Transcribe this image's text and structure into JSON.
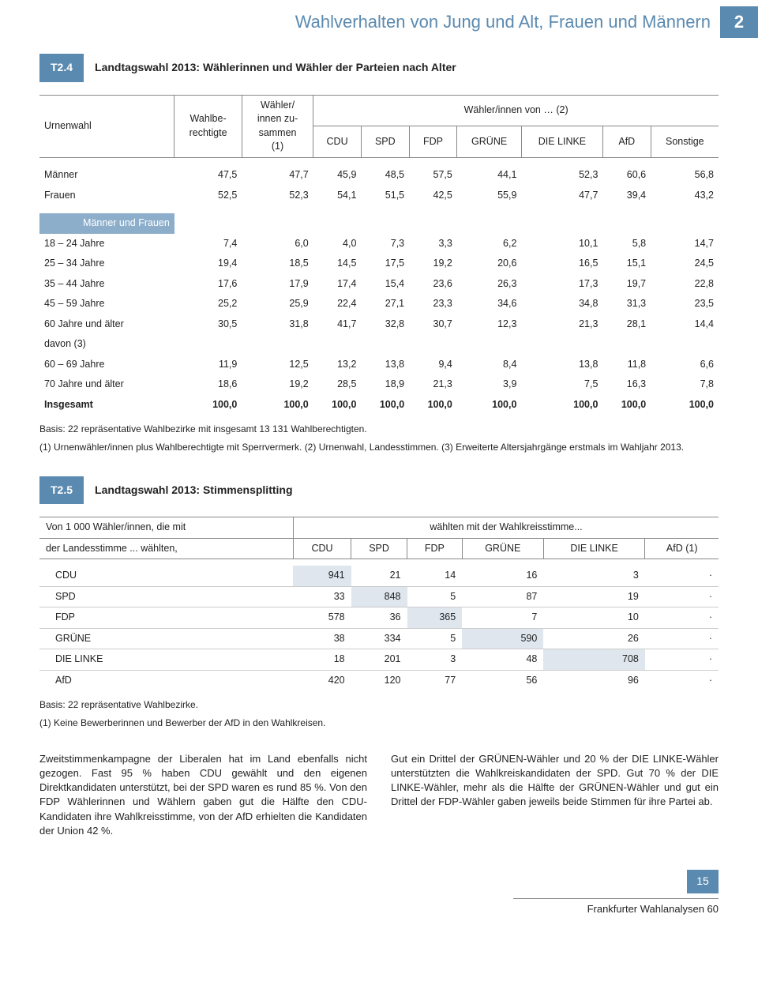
{
  "header": {
    "title": "Wahlverhalten von Jung und Alt, Frauen und Männern",
    "chapter": "2"
  },
  "t24": {
    "tag": "T2.4",
    "title": "Landtagswahl 2013: Wählerinnen und Wähler der Parteien nach Alter",
    "col_rowhead": "Urnenwahl",
    "col_wahlbe": "Wahlbe-\nrechtigte",
    "col_wiz": "Wähler/\ninnen zu-\nsammen\n(1)",
    "col_spanhead": "Wähler/innen von … (2)",
    "parties": [
      "CDU",
      "SPD",
      "FDP",
      "GRÜNE",
      "DIE LINKE",
      "AfD",
      "Sonstige"
    ],
    "rows_gender": [
      {
        "label": "Männer",
        "vals": [
          "47,5",
          "47,7",
          "45,9",
          "48,5",
          "57,5",
          "44,1",
          "52,3",
          "60,6",
          "56,8"
        ]
      },
      {
        "label": "Frauen",
        "vals": [
          "52,5",
          "52,3",
          "54,1",
          "51,5",
          "42,5",
          "55,9",
          "47,7",
          "39,4",
          "43,2"
        ]
      }
    ],
    "section_label": "Männer und Frauen",
    "rows_age": [
      {
        "label": "18 – 24 Jahre",
        "vals": [
          "7,4",
          "6,0",
          "4,0",
          "7,3",
          "3,3",
          "6,2",
          "10,1",
          "5,8",
          "14,7"
        ]
      },
      {
        "label": "25 – 34 Jahre",
        "vals": [
          "19,4",
          "18,5",
          "14,5",
          "17,5",
          "19,2",
          "20,6",
          "16,5",
          "15,1",
          "24,5"
        ]
      },
      {
        "label": "35 – 44 Jahre",
        "vals": [
          "17,6",
          "17,9",
          "17,4",
          "15,4",
          "23,6",
          "26,3",
          "17,3",
          "19,7",
          "22,8"
        ]
      },
      {
        "label": "45 – 59 Jahre",
        "vals": [
          "25,2",
          "25,9",
          "22,4",
          "27,1",
          "23,3",
          "34,6",
          "34,8",
          "31,3",
          "23,5"
        ]
      },
      {
        "label": "60 Jahre und älter",
        "vals": [
          "30,5",
          "31,8",
          "41,7",
          "32,8",
          "30,7",
          "12,3",
          "21,3",
          "28,1",
          "14,4"
        ]
      },
      {
        "label": "davon (3)",
        "vals": [
          "",
          "",
          "",
          "",
          "",
          "",
          "",
          "",
          ""
        ]
      },
      {
        "label": "60 – 69 Jahre",
        "vals": [
          "11,9",
          "12,5",
          "13,2",
          "13,8",
          "9,4",
          "8,4",
          "13,8",
          "11,8",
          "6,6"
        ]
      },
      {
        "label": "70 Jahre und älter",
        "vals": [
          "18,6",
          "19,2",
          "28,5",
          "18,9",
          "21,3",
          "3,9",
          "7,5",
          "16,3",
          "7,8"
        ]
      }
    ],
    "row_total": {
      "label": "Insgesamt",
      "vals": [
        "100,0",
        "100,0",
        "100,0",
        "100,0",
        "100,0",
        "100,0",
        "100,0",
        "100,0",
        "100,0"
      ]
    },
    "footnote_basis": "Basis: 22 repräsentative Wahlbezirke mit insgesamt 13 131 Wahlberechtigten.",
    "footnote_notes": "(1) Urnenwähler/innen plus Wahlberechtigte mit Sperrvermerk. (2) Urnenwahl, Landesstimmen. (3) Erweiterte Altersjahrgänge erstmals im Wahljahr 2013."
  },
  "t25": {
    "tag": "T2.5",
    "title": "Landtagswahl 2013: Stimmensplitting",
    "rowhead1": "Von 1 000 Wähler/innen, die mit",
    "rowhead2": "der Landesstimme ... wählten,",
    "spanhead": "wählten mit der Wahlkreisstimme...",
    "columns": [
      "CDU",
      "SPD",
      "FDP",
      "GRÜNE",
      "DIE LINKE",
      "AfD (1)"
    ],
    "rows": [
      {
        "label": "CDU",
        "vals": [
          "941",
          "21",
          "14",
          "16",
          "3",
          "·"
        ],
        "diag": 0
      },
      {
        "label": "SPD",
        "vals": [
          "33",
          "848",
          "5",
          "87",
          "19",
          "·"
        ],
        "diag": 1
      },
      {
        "label": "FDP",
        "vals": [
          "578",
          "36",
          "365",
          "7",
          "10",
          "·"
        ],
        "diag": 2
      },
      {
        "label": "GRÜNE",
        "vals": [
          "38",
          "334",
          "5",
          "590",
          "26",
          "·"
        ],
        "diag": 3
      },
      {
        "label": "DIE LINKE",
        "vals": [
          "18",
          "201",
          "3",
          "48",
          "708",
          "·"
        ],
        "diag": 4
      },
      {
        "label": "AfD",
        "vals": [
          "420",
          "120",
          "77",
          "56",
          "96",
          "·"
        ],
        "diag": -1
      }
    ],
    "footnote_basis": "Basis: 22 repräsentative Wahlbezirke.",
    "footnote_notes": "(1) Keine Bewerberinnen und Bewerber der AfD in den Wahlkreisen."
  },
  "body": {
    "col1": "Zweitstimmenkampagne der Liberalen hat im Land ebenfalls nicht gezogen. Fast 95 % haben CDU gewählt und den eigenen Direktkandidaten unterstützt, bei der SPD waren es rund 85 %. Von den FDP Wählerinnen und Wählern gaben gut die Hälfte den CDU-Kandidaten ihre Wahlkreisstimme, von der AfD erhielten die Kandidaten der Union 42 %.",
    "col2": "Gut ein Drittel der GRÜNEN-Wähler und 20 % der DIE LINKE-Wähler unterstützten die Wahlkreiskandidaten der SPD. Gut 70 % der DIE LINKE-Wähler, mehr als die Hälfte der GRÜNEN-Wähler und gut ein Drittel der FDP-Wähler gaben jeweils beide Stimmen für ihre Partei ab."
  },
  "footer": {
    "page": "15",
    "series": "Frankfurter Wahlanalysen 60"
  },
  "style": {
    "accent": "#5b8ab0",
    "diag_bg": "#dfe6ee"
  }
}
